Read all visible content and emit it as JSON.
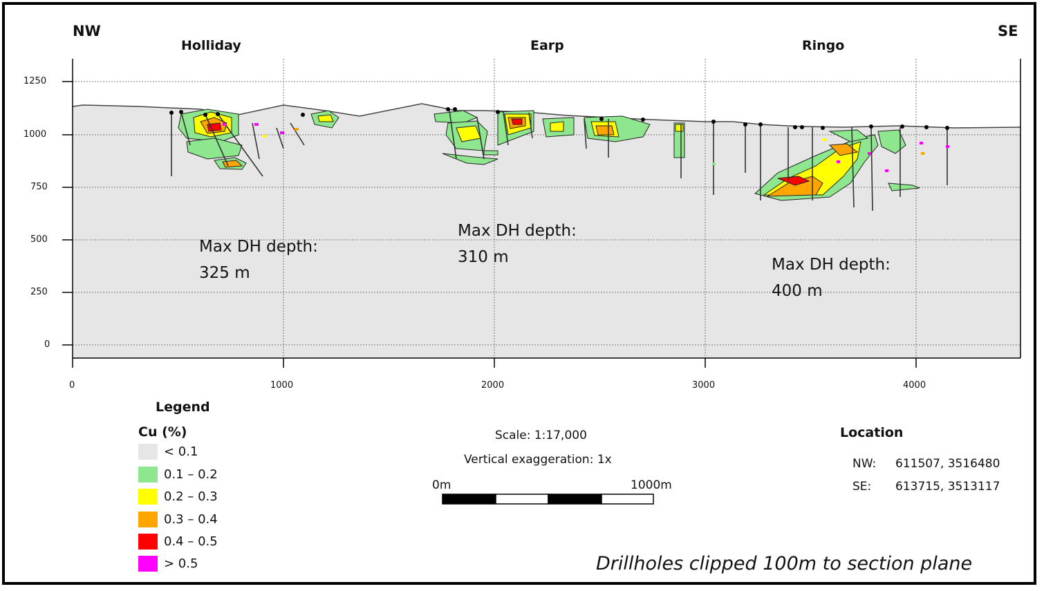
{
  "directions": {
    "nw": "NW",
    "se": "SE"
  },
  "prospects": [
    {
      "name": "Holliday",
      "x": 850,
      "max_depth_label": "Max DH depth:",
      "max_depth_value": "325 m"
    },
    {
      "name": "Earp",
      "x": 2250,
      "max_depth_label": "Max DH depth:",
      "max_depth_value": "310 m"
    },
    {
      "name": "Ringo",
      "x": 3580,
      "max_depth_label": "Max DH depth:",
      "max_depth_value": "400 m"
    }
  ],
  "axes": {
    "x_ticks": [
      "0",
      "1000",
      "2000",
      "3000",
      "4000"
    ],
    "y_ticks": [
      "1250",
      "1000",
      "750",
      "500",
      "250",
      "0"
    ],
    "x_range": [
      0,
      4500
    ],
    "y_range": [
      -50,
      1320
    ]
  },
  "legend": {
    "title": "Legend",
    "subtitle": "Cu (%)",
    "items": [
      {
        "label": "< 0.1",
        "color": "#e6e6e6"
      },
      {
        "label": "0.1 – 0.2",
        "color": "#8ee68e"
      },
      {
        "label": "0.2 – 0.3",
        "color": "#ffff00"
      },
      {
        "label": "0.3 – 0.4",
        "color": "#ffa500"
      },
      {
        "label": "0.4 – 0.5",
        "color": "#ff0000"
      },
      {
        "label": "> 0.5",
        "color": "#ff00ff"
      }
    ]
  },
  "scale": {
    "scale_text": "Scale: 1:17,000",
    "exaggeration_text": "Vertical exaggeration: 1x",
    "bar_start": "0m",
    "bar_end": "1000m"
  },
  "location": {
    "title": "Location",
    "nw_label": "NW:",
    "nw_value": "611507, 3516480",
    "se_label": "SE:",
    "se_value": "613715, 3513117"
  },
  "footer_note": "Drillholes clipped 100m to section plane",
  "colors": {
    "background": "#e6e6e6",
    "low": "#8ee68e",
    "mid": "#ffff00",
    "high": "#ffa500",
    "very_high": "#ff0000",
    "max": "#ff00ff"
  }
}
